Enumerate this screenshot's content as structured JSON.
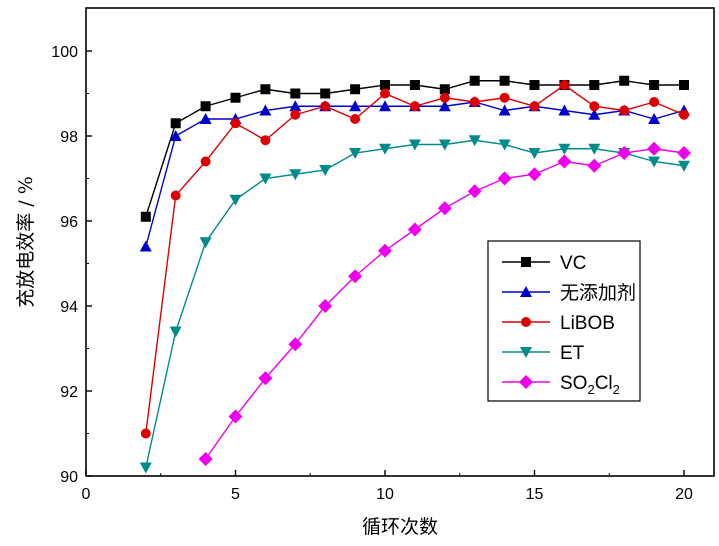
{
  "chart_data": {
    "type": "line",
    "xlabel": "循环次数",
    "ylabel": "充放电效率 / %",
    "xlim": [
      0,
      20
    ],
    "ylim": [
      90,
      101
    ],
    "xticks": [
      0,
      5,
      10,
      15,
      20
    ],
    "yticks": [
      90,
      92,
      94,
      96,
      98,
      100
    ],
    "grid": false,
    "legend_position": "middle-right",
    "series": [
      {
        "name": "VC",
        "color": "#000000",
        "marker": "square",
        "x": [
          2,
          3,
          4,
          5,
          6,
          7,
          8,
          9,
          10,
          11,
          12,
          13,
          14,
          15,
          16,
          17,
          18,
          19,
          20
        ],
        "y": [
          96.1,
          98.3,
          98.7,
          98.9,
          99.1,
          99.0,
          99.0,
          99.1,
          99.2,
          99.2,
          99.1,
          99.3,
          99.3,
          99.2,
          99.2,
          99.2,
          99.3,
          99.2,
          99.2
        ]
      },
      {
        "name": "无添加剂",
        "color": "#0000cc",
        "marker": "triangle-up",
        "x": [
          2,
          3,
          4,
          5,
          6,
          7,
          8,
          9,
          10,
          11,
          12,
          13,
          14,
          15,
          16,
          17,
          18,
          19,
          20
        ],
        "y": [
          95.4,
          98.0,
          98.4,
          98.4,
          98.6,
          98.7,
          98.7,
          98.7,
          98.7,
          98.7,
          98.7,
          98.8,
          98.6,
          98.7,
          98.6,
          98.5,
          98.6,
          98.4,
          98.6
        ]
      },
      {
        "name": "LiBOB",
        "color": "#dd0000",
        "marker": "circle",
        "x": [
          2,
          3,
          4,
          5,
          6,
          7,
          8,
          9,
          10,
          11,
          12,
          13,
          14,
          15,
          16,
          17,
          18,
          19,
          20
        ],
        "y": [
          91.0,
          96.6,
          97.4,
          98.3,
          97.9,
          98.5,
          98.7,
          98.4,
          99.0,
          98.7,
          98.9,
          98.8,
          98.9,
          98.7,
          99.2,
          98.7,
          98.6,
          98.8,
          98.5
        ]
      },
      {
        "name": "ET",
        "color": "#008b8b",
        "marker": "triangle-down",
        "x": [
          2,
          3,
          4,
          5,
          6,
          7,
          8,
          9,
          10,
          11,
          12,
          13,
          14,
          15,
          16,
          17,
          18,
          19,
          20
        ],
        "y": [
          90.2,
          93.4,
          95.5,
          96.5,
          97.0,
          97.1,
          97.2,
          97.6,
          97.7,
          97.8,
          97.8,
          97.9,
          97.8,
          97.6,
          97.7,
          97.7,
          97.6,
          97.4,
          97.3
        ]
      },
      {
        "name": "SO2Cl2",
        "display_main": "SO",
        "display_sub1": "2",
        "display_mid": "Cl",
        "display_sub2": "2",
        "color": "#ee00ee",
        "marker": "diamond",
        "x": [
          4,
          5,
          6,
          7,
          8,
          9,
          10,
          11,
          12,
          13,
          14,
          15,
          16,
          17,
          18,
          19,
          20
        ],
        "y": [
          90.4,
          91.4,
          92.3,
          93.1,
          94.0,
          94.7,
          95.3,
          95.8,
          96.3,
          96.7,
          97.0,
          97.1,
          97.4,
          97.3,
          97.6,
          97.7,
          97.6
        ]
      }
    ]
  }
}
